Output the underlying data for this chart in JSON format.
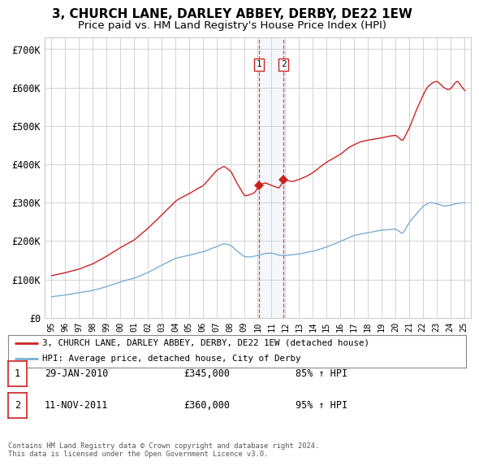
{
  "title": "3, CHURCH LANE, DARLEY ABBEY, DERBY, DE22 1EW",
  "subtitle": "Price paid vs. HM Land Registry's House Price Index (HPI)",
  "title_fontsize": 11,
  "subtitle_fontsize": 9.5,
  "ylabel_ticks": [
    "£0",
    "£100K",
    "£200K",
    "£300K",
    "£400K",
    "£500K",
    "£600K",
    "£700K"
  ],
  "ytick_values": [
    0,
    100000,
    200000,
    300000,
    400000,
    500000,
    600000,
    700000
  ],
  "ylim": [
    0,
    730000
  ],
  "xlim_start": 1994.5,
  "xlim_end": 2025.5,
  "background_color": "#ffffff",
  "plot_bg_color": "#ffffff",
  "grid_color": "#cccccc",
  "hpi_color": "#7bafd4",
  "price_color": "#cc2222",
  "legend_label_price": "3, CHURCH LANE, DARLEY ABBEY, DERBY, DE22 1EW (detached house)",
  "legend_label_hpi": "HPI: Average price, detached house, City of Derby",
  "transaction1_date": 2010.08,
  "transaction1_value": 345000,
  "transaction2_date": 2011.87,
  "transaction2_value": 360000,
  "footnote": "Contains HM Land Registry data © Crown copyright and database right 2024.\nThis data is licensed under the Open Government Licence v3.0."
}
